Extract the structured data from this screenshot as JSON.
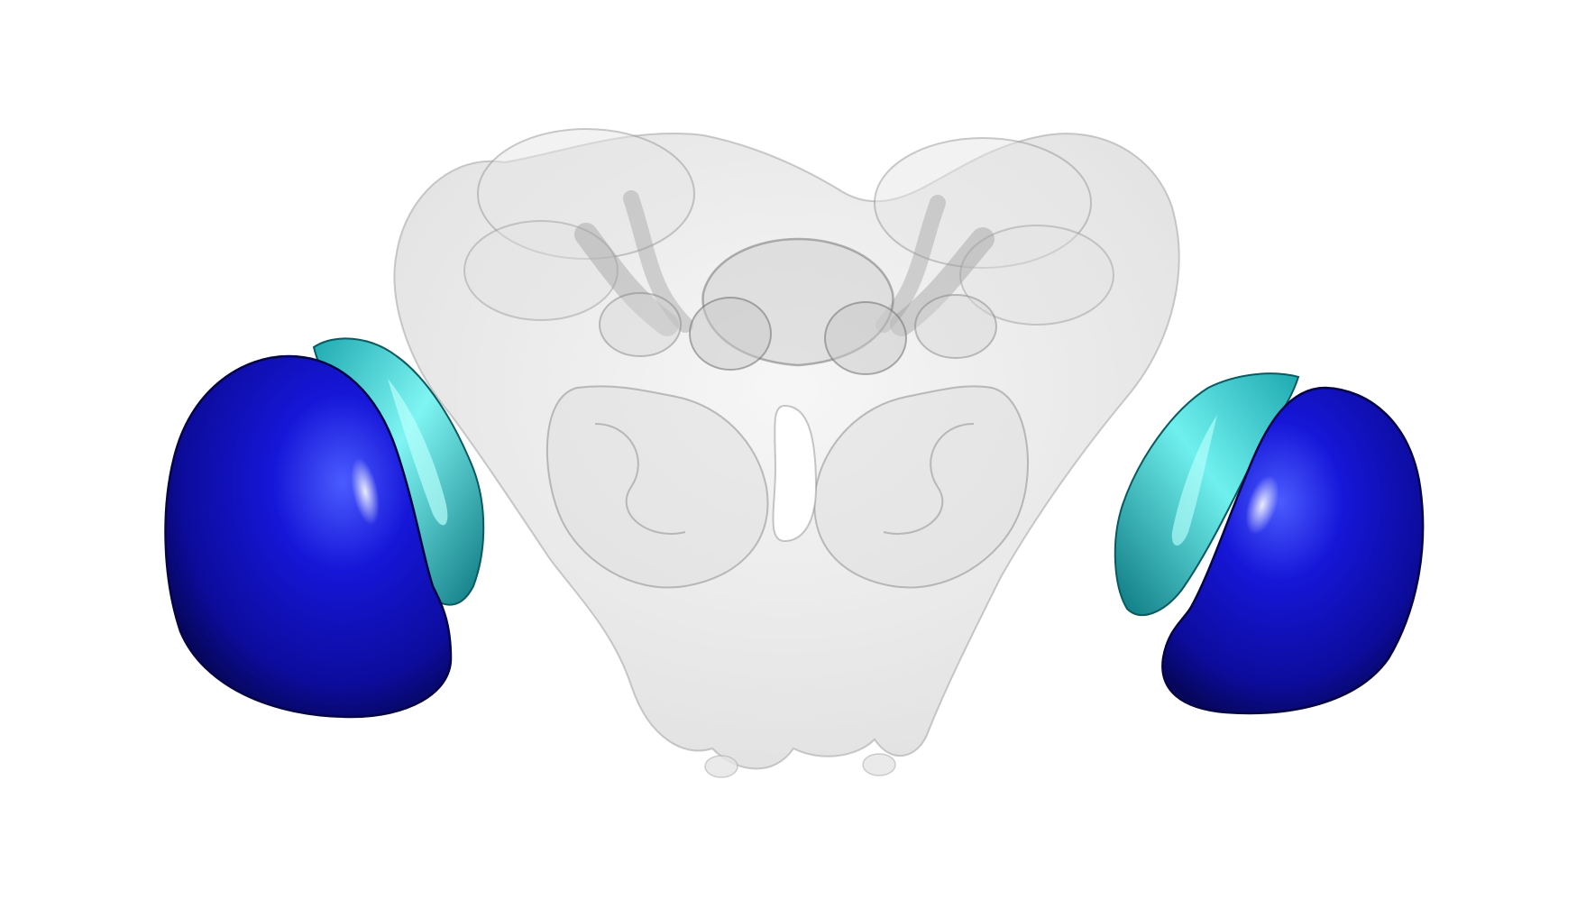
{
  "scene": {
    "background": "#ffffff",
    "colors": {
      "brain_fill": "#d6d6d6",
      "brain_stroke": "#9a9a9a",
      "neuropil_fill": "#bdbdbd",
      "neuropil_stroke": "#6f6f6f",
      "medulla_dark": "#0a0a7a",
      "medulla_main": "#1212c8",
      "medulla_light": "#3a48f0",
      "lobula_dark": "#0b6f78",
      "lobula_main": "#1fc5c9",
      "lobula_light": "#8ff7f5"
    },
    "objects": [
      {
        "name": "central-brain",
        "style": "translucent gray"
      },
      {
        "name": "left-medulla",
        "style": "opaque blue"
      },
      {
        "name": "left-lobula",
        "style": "opaque cyan"
      },
      {
        "name": "right-medulla",
        "style": "opaque blue"
      },
      {
        "name": "right-lobula",
        "style": "opaque cyan"
      }
    ]
  }
}
